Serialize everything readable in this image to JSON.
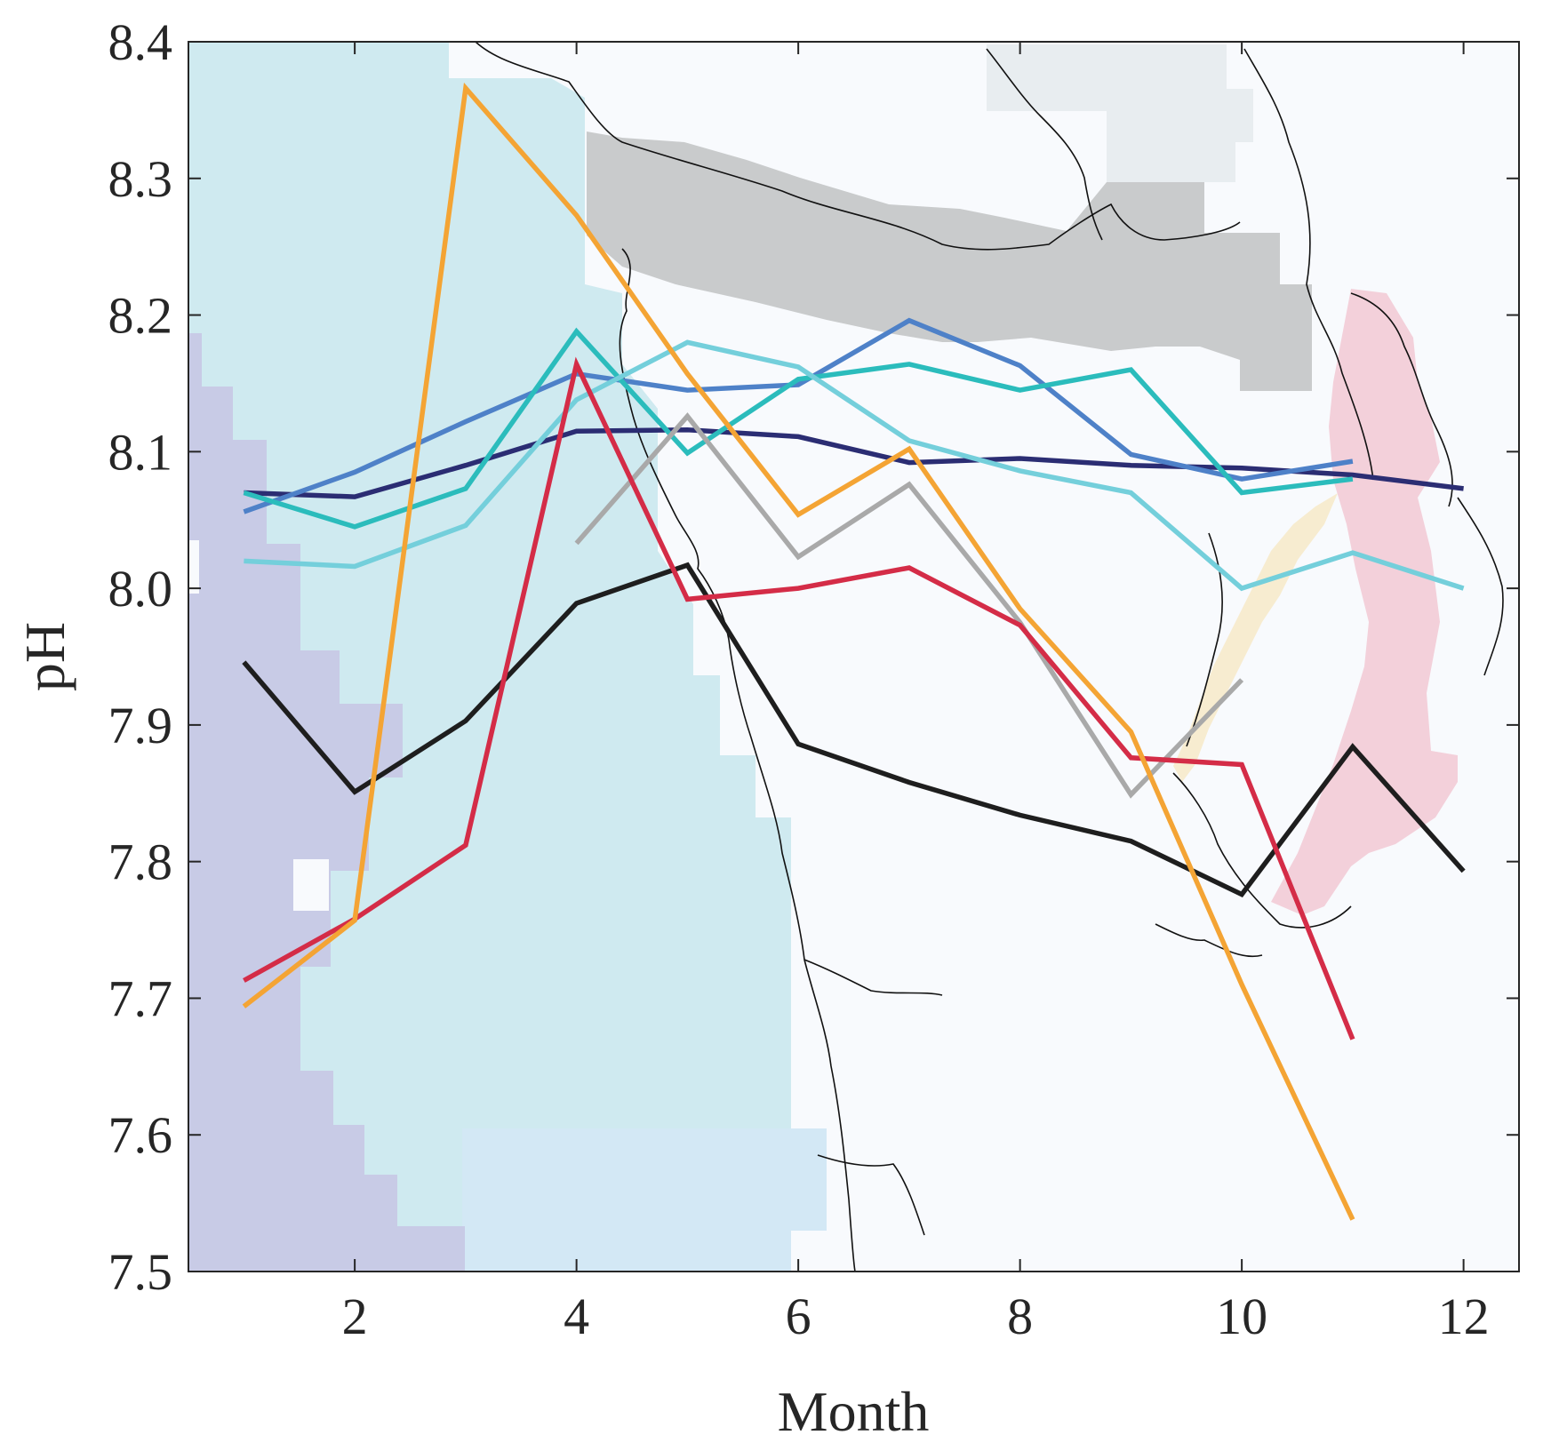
{
  "chart_data": {
    "type": "line",
    "title": "",
    "xlabel": "Month",
    "ylabel": "pH",
    "xlim": [
      0.5,
      12.5
    ],
    "ylim": [
      7.5,
      8.4
    ],
    "xticks": [
      2,
      4,
      6,
      8,
      10,
      12
    ],
    "yticks": [
      "7.5",
      "7.6",
      "7.7",
      "7.8",
      "7.9",
      "8.0",
      "8.1",
      "8.2",
      "8.3",
      "8.4"
    ],
    "grid": false,
    "legend": "none",
    "background": "map of Pacific Northwest coastline with shaded regions",
    "region_colors": {
      "lavender": "#c8cbe6",
      "pale_cyan": "#cfeaf0",
      "light_blue": "#d3e8f5",
      "grey": "#c9cbcc",
      "light_grey": "#e8edf0",
      "pink": "#f3d0da",
      "cream": "#f7ecd0",
      "land": "#f8fafd"
    },
    "series": [
      {
        "color": "#2b2d73",
        "x": [
          1,
          2,
          3,
          4,
          5,
          6,
          7,
          8,
          9,
          10,
          11,
          12
        ],
        "y": [
          8.07,
          8.067,
          8.09,
          8.115,
          8.116,
          8.111,
          8.092,
          8.095,
          8.09,
          8.088,
          8.083,
          8.073
        ]
      },
      {
        "color": "#4e81c8",
        "x": [
          1,
          2,
          3,
          4,
          5,
          6,
          7,
          8,
          9,
          10,
          11
        ],
        "y": [
          8.056,
          8.085,
          8.122,
          8.157,
          8.145,
          8.149,
          8.196,
          8.163,
          8.098,
          8.08,
          8.093
        ]
      },
      {
        "color": "#2bbcbc",
        "x": [
          1,
          2,
          3,
          4,
          5,
          6,
          7,
          8,
          9,
          10,
          11
        ],
        "y": [
          8.07,
          8.045,
          8.073,
          8.188,
          8.099,
          8.153,
          8.164,
          8.145,
          8.16,
          8.07,
          8.08
        ]
      },
      {
        "color": "#74cfdb",
        "x": [
          1,
          2,
          3,
          4,
          5,
          6,
          7,
          8,
          9,
          10,
          11,
          12
        ],
        "y": [
          8.02,
          8.016,
          8.046,
          8.138,
          8.18,
          8.162,
          8.108,
          8.086,
          8.07,
          8.0,
          8.026,
          8.0
        ]
      },
      {
        "color": "#a9a9a9",
        "x": [
          4,
          5,
          6,
          7,
          8,
          9,
          10
        ],
        "y": [
          8.033,
          8.126,
          8.023,
          8.076,
          7.975,
          7.849,
          7.933
        ]
      },
      {
        "color": "#1e1e1e",
        "x": [
          1,
          2,
          3,
          4,
          5,
          6,
          7,
          8,
          9,
          10,
          11,
          12
        ],
        "y": [
          7.946,
          7.851,
          7.903,
          7.989,
          8.017,
          7.886,
          7.858,
          7.834,
          7.815,
          7.776,
          7.884,
          7.793
        ]
      },
      {
        "color": "#d42c47",
        "x": [
          1,
          2,
          3,
          4,
          5,
          6,
          7,
          8,
          9,
          10,
          11
        ],
        "y": [
          7.713,
          7.758,
          7.812,
          8.164,
          7.992,
          8.0,
          8.015,
          7.973,
          7.876,
          7.871,
          7.67
        ]
      },
      {
        "color": "#f4a434",
        "x": [
          1,
          2,
          3,
          4,
          5,
          6,
          7,
          8,
          9,
          10,
          11
        ],
        "y": [
          7.694,
          7.757,
          8.366,
          8.273,
          8.157,
          8.054,
          8.102,
          7.985,
          7.895,
          7.71,
          7.538
        ]
      }
    ]
  }
}
